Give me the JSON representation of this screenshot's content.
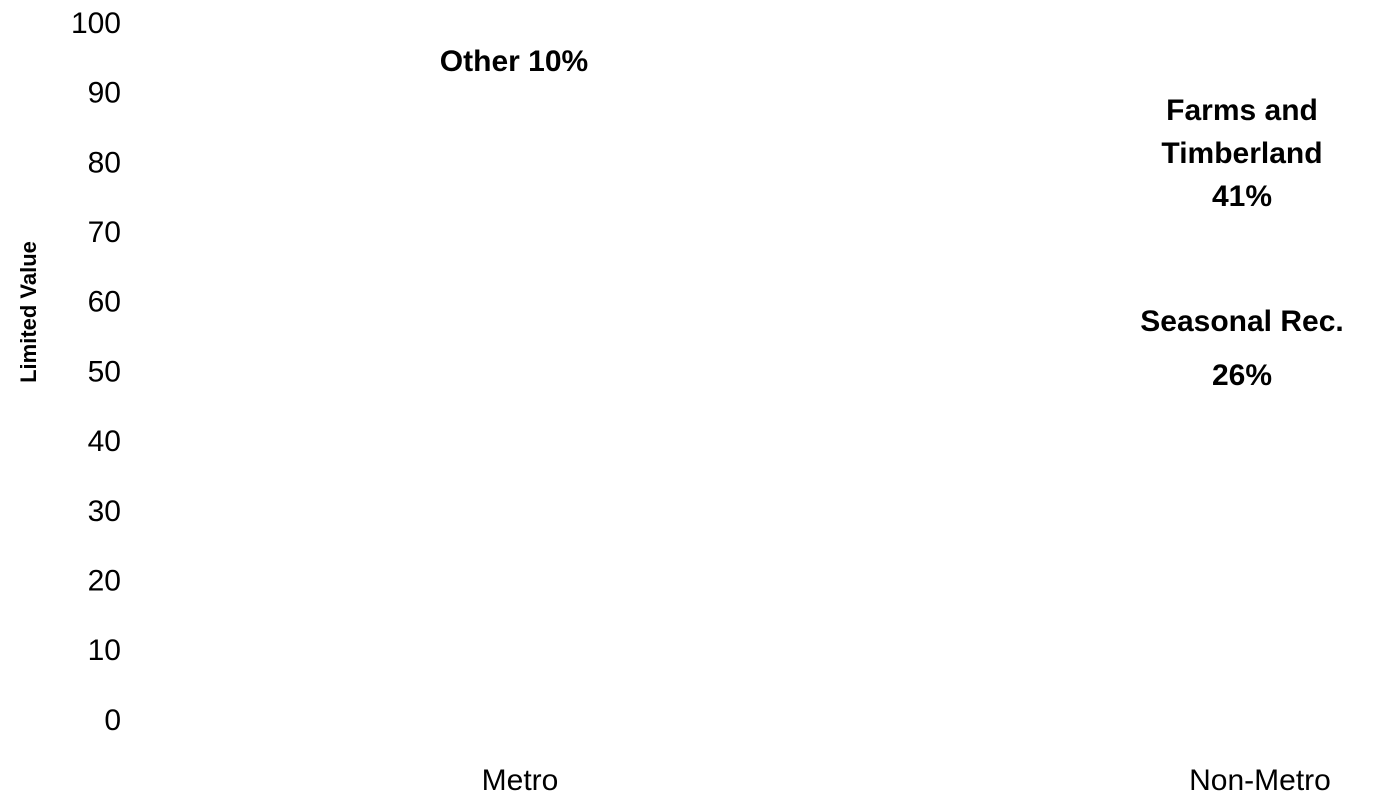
{
  "chart_data": {
    "type": "bar",
    "categories": [
      "Metro",
      "Non-Metro"
    ],
    "y_label": "Limited Value",
    "ylim": [
      0,
      100
    ],
    "yticks": [
      0,
      10,
      20,
      30,
      40,
      50,
      60,
      70,
      80,
      90,
      100
    ],
    "annotations": [
      {
        "lines": [
          "Other 10%"
        ]
      },
      {
        "lines": [
          "Farms and",
          "Timberland",
          "41%"
        ]
      },
      {
        "lines": [
          "Seasonal Rec.",
          "26%"
        ]
      }
    ]
  }
}
